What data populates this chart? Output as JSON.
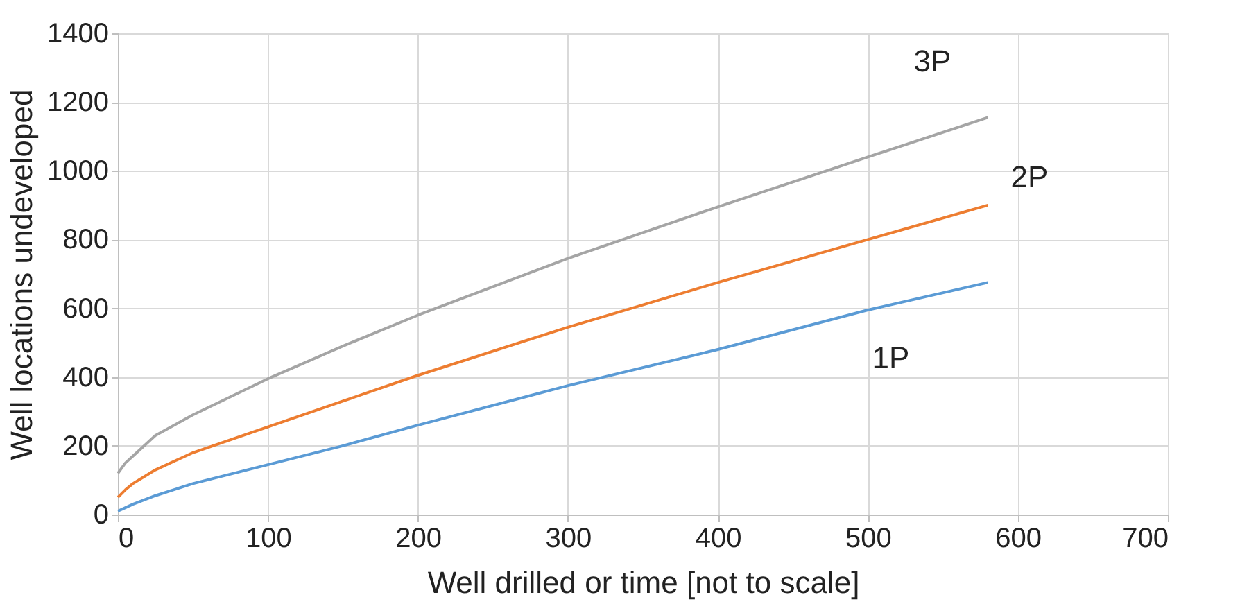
{
  "chart_data": {
    "type": "line",
    "xlabel": "Well drilled or time [not to scale]",
    "ylabel": "Well locations undeveloped",
    "x": [
      0,
      5,
      10,
      25,
      50,
      100,
      150,
      200,
      300,
      400,
      500,
      580
    ],
    "series": [
      {
        "name": "1P",
        "color": "#5b9bd5",
        "values": [
          10,
          20,
          30,
          55,
          90,
          145,
          200,
          260,
          375,
          480,
          595,
          675
        ]
      },
      {
        "name": "2P",
        "color": "#ed7d31",
        "values": [
          50,
          72,
          90,
          130,
          180,
          255,
          330,
          405,
          545,
          675,
          800,
          900
        ]
      },
      {
        "name": "3P",
        "color": "#a5a5a5",
        "values": [
          120,
          150,
          170,
          230,
          290,
          395,
          490,
          580,
          745,
          895,
          1040,
          1155
        ]
      }
    ],
    "xlim": [
      0,
      700
    ],
    "xticks": [
      0,
      100,
      200,
      300,
      400,
      500,
      600,
      700
    ],
    "ylim": [
      0,
      1400
    ],
    "yticks": [
      0,
      200,
      400,
      600,
      800,
      1000,
      1200,
      1400
    ],
    "grid": true,
    "marker": "none",
    "line_style": "solid"
  }
}
